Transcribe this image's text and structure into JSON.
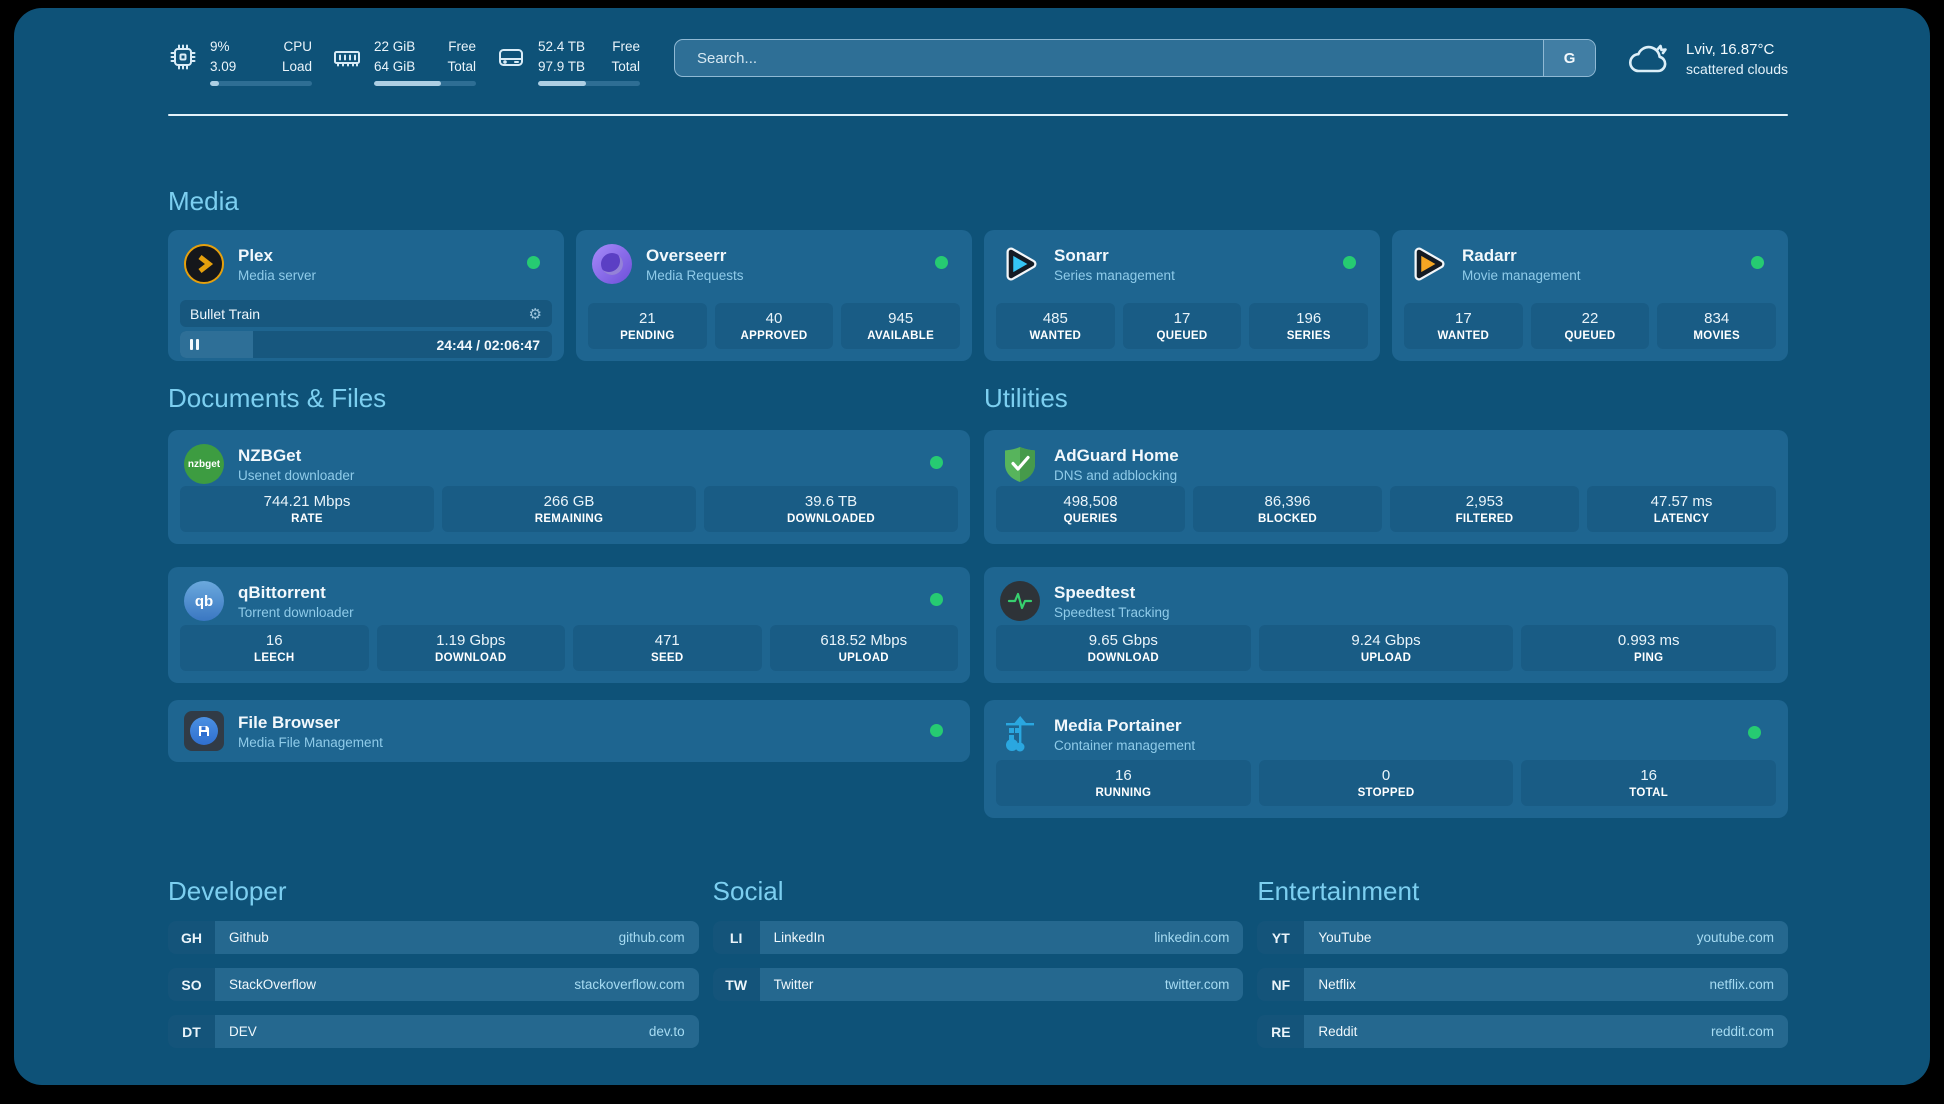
{
  "colors": {
    "background": "#0E5278",
    "card": "#1E6590",
    "stat_box": "#195C85",
    "section_title": "#7CCFF0",
    "status_green": "#26CB72",
    "plex_orange": "#E5A00D"
  },
  "header": {
    "stats": [
      {
        "icon": "cpu-icon",
        "value_top": "9%",
        "value_bottom": "3.09",
        "label_top": "CPU",
        "label_bottom": "Load",
        "progress": 9
      },
      {
        "icon": "ram-icon",
        "value_top": "22 GiB",
        "value_bottom": "64 GiB",
        "label_top": "Free",
        "label_bottom": "Total",
        "progress": 66
      },
      {
        "icon": "disk-icon",
        "value_top": "52.4 TB",
        "value_bottom": "97.9 TB",
        "label_top": "Free",
        "label_bottom": "Total",
        "progress": 47
      }
    ],
    "search": {
      "placeholder": "Search...",
      "button_label": "G"
    },
    "weather": {
      "location": "Lviv, 16.87°C",
      "condition": "scattered clouds"
    }
  },
  "media": {
    "title": "Media",
    "plex": {
      "name": "Plex",
      "subtitle": "Media server",
      "status": "online",
      "now_playing": "Bullet Train",
      "time": "24:44 / 02:06:47",
      "progress": 19.5
    },
    "overseerr": {
      "name": "Overseerr",
      "subtitle": "Media Requests",
      "status": "online",
      "stats": [
        {
          "value": "21",
          "label": "PENDING"
        },
        {
          "value": "40",
          "label": "APPROVED"
        },
        {
          "value": "945",
          "label": "AVAILABLE"
        }
      ]
    },
    "sonarr": {
      "name": "Sonarr",
      "subtitle": "Series management",
      "status": "online",
      "stats": [
        {
          "value": "485",
          "label": "WANTED"
        },
        {
          "value": "17",
          "label": "QUEUED"
        },
        {
          "value": "196",
          "label": "SERIES"
        }
      ]
    },
    "radarr": {
      "name": "Radarr",
      "subtitle": "Movie management",
      "status": "online",
      "stats": [
        {
          "value": "17",
          "label": "WANTED"
        },
        {
          "value": "22",
          "label": "QUEUED"
        },
        {
          "value": "834",
          "label": "MOVIES"
        }
      ]
    }
  },
  "documents": {
    "title": "Documents & Files",
    "nzbget": {
      "name": "NZBGet",
      "subtitle": "Usenet downloader",
      "status": "online",
      "icon_text": "nzbget",
      "stats": [
        {
          "value": "744.21 Mbps",
          "label": "RATE"
        },
        {
          "value": "266 GB",
          "label": "REMAINING"
        },
        {
          "value": "39.6 TB",
          "label": "DOWNLOADED"
        }
      ]
    },
    "qbittorrent": {
      "name": "qBittorrent",
      "subtitle": "Torrent downloader",
      "status": "online",
      "icon_text": "qb",
      "stats": [
        {
          "value": "16",
          "label": "LEECH"
        },
        {
          "value": "1.19 Gbps",
          "label": "DOWNLOAD"
        },
        {
          "value": "471",
          "label": "SEED"
        },
        {
          "value": "618.52 Mbps",
          "label": "UPLOAD"
        }
      ]
    },
    "filebrowser": {
      "name": "File Browser",
      "subtitle": "Media File Management",
      "status": "online"
    }
  },
  "utilities": {
    "title": "Utilities",
    "adguard": {
      "name": "AdGuard Home",
      "subtitle": "DNS and adblocking",
      "stats": [
        {
          "value": "498,508",
          "label": "QUERIES"
        },
        {
          "value": "86,396",
          "label": "BLOCKED"
        },
        {
          "value": "2,953",
          "label": "FILTERED"
        },
        {
          "value": "47.57 ms",
          "label": "LATENCY"
        }
      ]
    },
    "speedtest": {
      "name": "Speedtest",
      "subtitle": "Speedtest Tracking",
      "stats": [
        {
          "value": "9.65 Gbps",
          "label": "DOWNLOAD"
        },
        {
          "value": "9.24 Gbps",
          "label": "UPLOAD"
        },
        {
          "value": "0.993 ms",
          "label": "PING"
        }
      ]
    },
    "portainer": {
      "name": "Media Portainer",
      "subtitle": "Container management",
      "status": "online",
      "stats": [
        {
          "value": "16",
          "label": "RUNNING"
        },
        {
          "value": "0",
          "label": "STOPPED"
        },
        {
          "value": "16",
          "label": "TOTAL"
        }
      ]
    }
  },
  "link_sections": [
    {
      "title": "Developer",
      "links": [
        {
          "tag": "GH",
          "name": "Github",
          "domain": "github.com"
        },
        {
          "tag": "SO",
          "name": "StackOverflow",
          "domain": "stackoverflow.com"
        },
        {
          "tag": "DT",
          "name": "DEV",
          "domain": "dev.to"
        }
      ]
    },
    {
      "title": "Social",
      "links": [
        {
          "tag": "LI",
          "name": "LinkedIn",
          "domain": "linkedin.com"
        },
        {
          "tag": "TW",
          "name": "Twitter",
          "domain": "twitter.com"
        }
      ]
    },
    {
      "title": "Entertainment",
      "links": [
        {
          "tag": "YT",
          "name": "YouTube",
          "domain": "youtube.com"
        },
        {
          "tag": "NF",
          "name": "Netflix",
          "domain": "netflix.com"
        },
        {
          "tag": "RE",
          "name": "Reddit",
          "domain": "reddit.com"
        }
      ]
    }
  ],
  "icons": {
    "gear": "⚙"
  }
}
